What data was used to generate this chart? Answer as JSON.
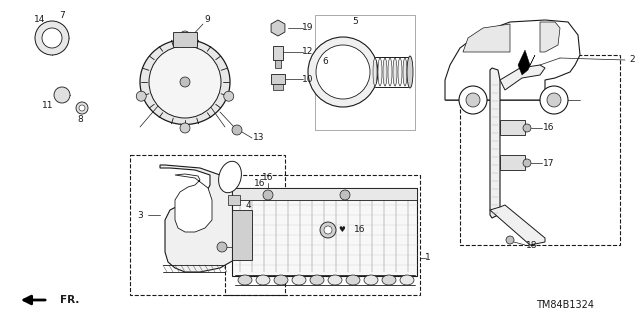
{
  "bg_color": "#ffffff",
  "fig_width": 6.4,
  "fig_height": 3.19,
  "dpi": 100,
  "diagram_code": "TM84B1324",
  "line_color": "#1a1a1a",
  "font_size": 6.5
}
